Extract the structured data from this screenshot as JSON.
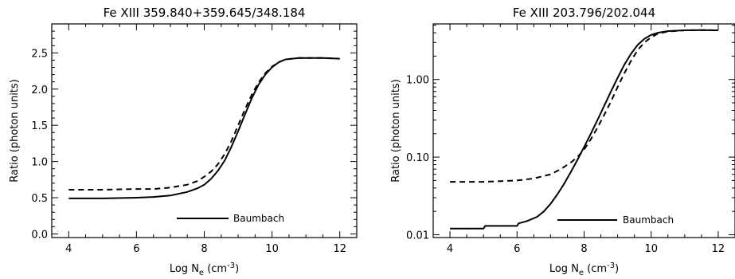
{
  "chart_data": [
    {
      "type": "line",
      "title": "Fe XIII   359.840+359.645/348.184",
      "xlabel": "Log N",
      "xlabel_sub": "e",
      "xlabel_unit": " (cm",
      "xlabel_sup": "-3",
      "xlabel_close": ")",
      "ylabel": "Ratio (photon units)",
      "xlim": [
        3.5,
        12.5
      ],
      "ylim": [
        -0.05,
        2.9
      ],
      "yscale": "linear",
      "xticks": [
        4,
        6,
        8,
        10,
        12
      ],
      "yticks": [
        0.0,
        0.5,
        1.0,
        1.5,
        2.0,
        2.5
      ],
      "ytick_labels": [
        "0.0",
        "0.5",
        "1.0",
        "1.5",
        "2.0",
        "2.5"
      ],
      "legend": {
        "label": "Baumbach",
        "style": "solid",
        "placement": "bottom-right"
      },
      "series": [
        {
          "name": "Baumbach",
          "style": "solid",
          "x": [
            4.0,
            5.0,
            6.0,
            6.5,
            7.0,
            7.5,
            7.8,
            8.0,
            8.2,
            8.4,
            8.6,
            8.8,
            9.0,
            9.2,
            9.4,
            9.6,
            9.8,
            10.0,
            10.2,
            10.4,
            10.6,
            10.8,
            11.0,
            11.5,
            12.0
          ],
          "y": [
            0.49,
            0.49,
            0.5,
            0.51,
            0.53,
            0.58,
            0.63,
            0.68,
            0.76,
            0.87,
            1.01,
            1.2,
            1.42,
            1.65,
            1.87,
            2.06,
            2.2,
            2.3,
            2.37,
            2.41,
            2.42,
            2.43,
            2.43,
            2.43,
            2.42
          ]
        },
        {
          "name": "",
          "style": "dashed",
          "x": [
            4.0,
            5.0,
            6.0,
            6.5,
            7.0,
            7.5,
            7.8,
            8.0,
            8.2,
            8.4,
            8.6,
            8.8,
            9.0,
            9.2,
            9.4,
            9.6,
            9.8,
            10.0,
            10.2,
            10.4,
            10.6,
            10.8,
            11.0,
            11.5,
            12.0
          ],
          "y": [
            0.61,
            0.61,
            0.62,
            0.62,
            0.64,
            0.68,
            0.73,
            0.79,
            0.86,
            0.96,
            1.1,
            1.28,
            1.5,
            1.72,
            1.92,
            2.09,
            2.22,
            2.31,
            2.37,
            2.41,
            2.42,
            2.43,
            2.43,
            2.43,
            2.42
          ]
        }
      ]
    },
    {
      "type": "line",
      "title": "Fe XIII   203.796/202.044",
      "xlabel": "Log N",
      "xlabel_sub": "e",
      "xlabel_unit": " (cm",
      "xlabel_sup": "-3",
      "xlabel_close": ")",
      "ylabel": "Ratio (photon units)",
      "xlim": [
        3.5,
        12.5
      ],
      "ylim": [
        0.0092,
        5.2
      ],
      "yscale": "log",
      "xticks": [
        4,
        6,
        8,
        10,
        12
      ],
      "yticks": [
        0.01,
        0.1,
        1.0
      ],
      "ytick_labels": [
        "0.01",
        "0.10",
        "1.00"
      ],
      "legend": {
        "label": "Baumbach",
        "style": "solid",
        "placement": "bottom-right"
      },
      "series": [
        {
          "name": "Baumbach",
          "style": "solid",
          "x": [
            4.0,
            4.5,
            5.0,
            5.05,
            5.5,
            6.0,
            6.05,
            6.3,
            6.6,
            6.8,
            7.0,
            7.2,
            7.4,
            7.6,
            7.8,
            8.0,
            8.2,
            8.4,
            8.6,
            8.8,
            9.0,
            9.2,
            9.4,
            9.6,
            9.8,
            10.0,
            10.2,
            10.5,
            11.0,
            11.5,
            12.0
          ],
          "y": [
            0.012,
            0.012,
            0.012,
            0.013,
            0.013,
            0.013,
            0.014,
            0.015,
            0.017,
            0.02,
            0.025,
            0.033,
            0.045,
            0.064,
            0.092,
            0.135,
            0.2,
            0.3,
            0.46,
            0.7,
            1.05,
            1.55,
            2.15,
            2.8,
            3.35,
            3.75,
            4.0,
            4.2,
            4.3,
            4.32,
            4.3
          ]
        },
        {
          "name": "",
          "style": "dashed",
          "x": [
            4.0,
            5.0,
            6.0,
            6.5,
            7.0,
            7.3,
            7.6,
            7.8,
            8.0,
            8.2,
            8.4,
            8.6,
            8.8,
            9.0,
            9.2,
            9.4,
            9.6,
            9.8,
            10.0,
            10.2,
            10.5,
            11.0,
            11.5,
            12.0
          ],
          "y": [
            0.048,
            0.048,
            0.05,
            0.053,
            0.06,
            0.07,
            0.085,
            0.1,
            0.125,
            0.17,
            0.24,
            0.35,
            0.52,
            0.8,
            1.2,
            1.75,
            2.4,
            3.0,
            3.5,
            3.9,
            4.15,
            4.3,
            4.32,
            4.3
          ]
        }
      ]
    }
  ]
}
